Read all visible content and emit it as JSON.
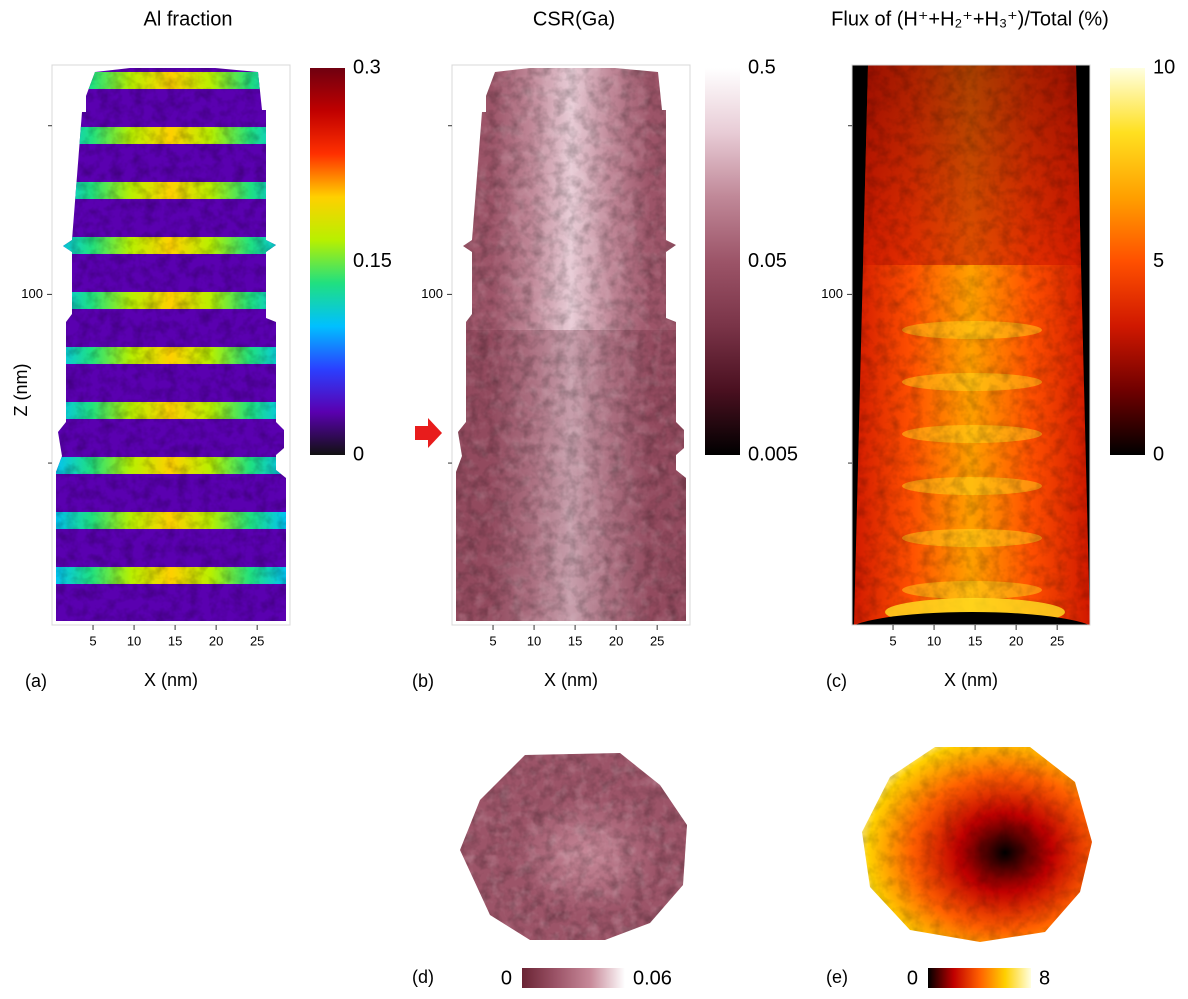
{
  "chart_data": [
    {
      "type": "heatmap",
      "panel_label": "(a)",
      "title": "Al fraction",
      "xlabel": "X (nm)",
      "ylabel": "Z (nm)",
      "xlim": [
        0,
        29
      ],
      "xticks": [
        5,
        10,
        15,
        20,
        25
      ],
      "ylim": [
        2,
        168
      ],
      "yticks": [
        100
      ],
      "yminorticks": [
        50,
        150
      ],
      "colorbar": {
        "lim": [
          0,
          0.3
        ],
        "ticks": [
          0,
          0.15,
          0.3
        ],
        "log": false,
        "orientation": "vertical",
        "colors": [
          "#111111",
          "#5a00b0",
          "#2a40ff",
          "#00c0ff",
          "#20e080",
          "#b8f000",
          "#ffd000",
          "#ff3000",
          "#c00000",
          "#700010"
        ]
      }
    },
    {
      "type": "heatmap",
      "panel_label": "(b)",
      "title": "CSR(Ga)",
      "xlabel": "X (nm)",
      "xlim": [
        0,
        29
      ],
      "xticks": [
        5,
        10,
        15,
        20,
        25
      ],
      "ylim": [
        2,
        168
      ],
      "yticks": [
        100
      ],
      "yminorticks": [
        50,
        150
      ],
      "colorbar": {
        "lim": [
          0.005,
          0.5
        ],
        "ticks": [
          0.005,
          0.05,
          0.5
        ],
        "log": true,
        "orientation": "vertical",
        "colors": [
          "#000000",
          "#4a1020",
          "#7a3448",
          "#9c5468",
          "#c08898",
          "#e8ccd6",
          "#ffffff"
        ]
      }
    },
    {
      "type": "heatmap",
      "panel_label": "(c)",
      "title": "Flux of (H⁺+H₂⁺+H₃⁺)/Total (%)",
      "xlabel": "X (nm)",
      "xlim": [
        0,
        29
      ],
      "xticks": [
        5,
        10,
        15,
        20,
        25
      ],
      "ylim": [
        2,
        168
      ],
      "yticks": [
        100
      ],
      "yminorticks": [
        50,
        150
      ],
      "colorbar": {
        "lim": [
          0,
          10
        ],
        "ticks": [
          0,
          5,
          10
        ],
        "log": false,
        "orientation": "vertical",
        "colors": [
          "#000000",
          "#700000",
          "#d01800",
          "#ff5000",
          "#ffa000",
          "#ffe020",
          "#ffffe0"
        ]
      }
    },
    {
      "type": "heatmap",
      "panel_label": "(d)",
      "colorbar": {
        "lim": [
          0,
          0.06
        ],
        "ticks": [
          0,
          0.06
        ],
        "log": false,
        "orientation": "horizontal",
        "colors": [
          "#6a2434",
          "#9c5468",
          "#c88a9a",
          "#ffffff"
        ]
      }
    },
    {
      "type": "heatmap",
      "panel_label": "(e)",
      "colorbar": {
        "lim": [
          0,
          8
        ],
        "ticks": [
          0,
          8
        ],
        "log": false,
        "orientation": "horizontal",
        "colors": [
          "#000000",
          "#c00000",
          "#ff6000",
          "#ffd000",
          "#ffffe0"
        ]
      }
    }
  ]
}
